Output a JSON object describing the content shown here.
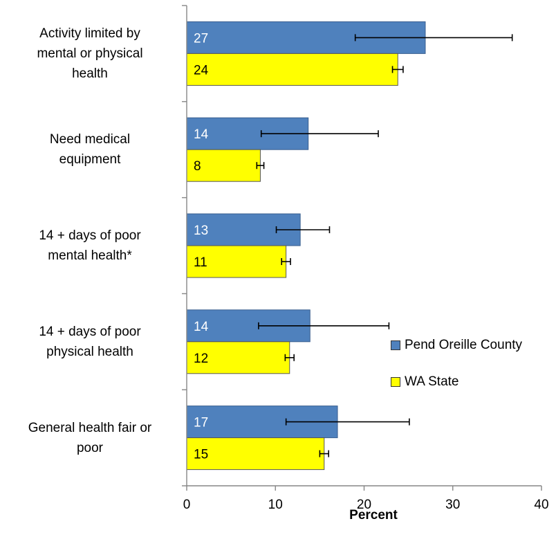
{
  "chart_data": {
    "type": "bar",
    "orientation": "horizontal",
    "categories": [
      "Activity limited by mental or physical health",
      "Need medical equipment",
      "14 + days of poor mental health*",
      "14 + days of poor physical health",
      "General health fair or poor"
    ],
    "category_lines": [
      [
        "Activity limited by",
        "mental or physical",
        "health"
      ],
      [
        "Need medical",
        "equipment"
      ],
      [
        "14 + days of poor",
        "mental health*"
      ],
      [
        "14 + days of poor",
        "physical health"
      ],
      [
        "General health fair or",
        "poor"
      ]
    ],
    "series": [
      {
        "name": "Pend Oreille County",
        "color": "#4F81BD",
        "label_color": "#FFFFFF",
        "values": [
          26.9,
          13.7,
          12.8,
          13.9,
          17.0
        ],
        "labels": [
          "27",
          "14",
          "13",
          "14",
          "17"
        ],
        "error_low": [
          19.0,
          8.4,
          10.1,
          8.1,
          11.2
        ],
        "error_high": [
          36.7,
          21.6,
          16.1,
          22.8,
          25.1
        ]
      },
      {
        "name": "WA State",
        "color": "#FFFF00",
        "label_color": "#000000",
        "values": [
          23.8,
          8.3,
          11.2,
          11.6,
          15.5
        ],
        "labels": [
          "24",
          "8",
          "11",
          "12",
          "15"
        ],
        "error_low": [
          23.2,
          7.9,
          10.7,
          11.1,
          15.0
        ],
        "error_high": [
          24.4,
          8.7,
          11.7,
          12.1,
          16.0
        ]
      }
    ],
    "xlabel": "Percent",
    "xlim": [
      0,
      40
    ],
    "xticks": [
      "0",
      "10",
      "20",
      "30",
      "40"
    ],
    "grid": false,
    "legend_position": "right"
  }
}
